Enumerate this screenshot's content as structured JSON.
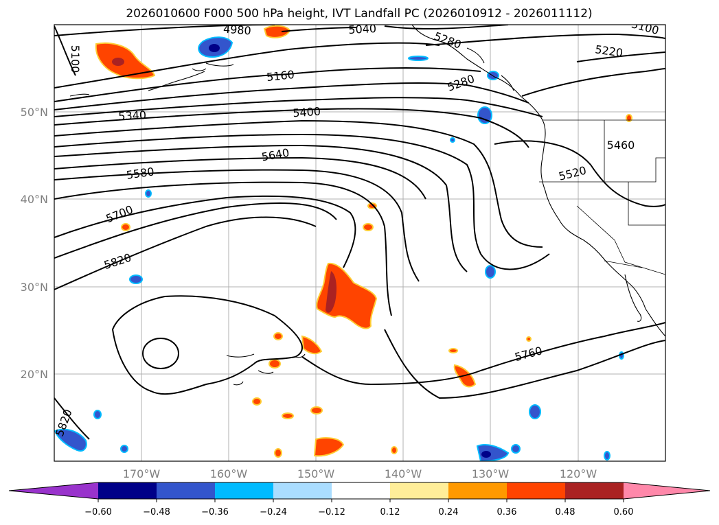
{
  "title": "2026010600 F000 500 hPa height, IVT Landfall PC (2026010912 - 2026011112)",
  "map": {
    "lat_labels": [
      "50°N",
      "40°N",
      "30°N",
      "20°N"
    ],
    "lon_labels": [
      "170°W",
      "160°W",
      "150°W",
      "140°W",
      "130°W",
      "120°W"
    ],
    "gridlines": true
  },
  "contour_labels": [
    "4980",
    "5040",
    "5100",
    "5160",
    "5220",
    "5280",
    "5340",
    "5400",
    "5460",
    "5520",
    "5580",
    "5640",
    "5700",
    "5760",
    "5820",
    "5820",
    "5100",
    "5280"
  ],
  "colorbar": {
    "ticks": [
      "−0.60",
      "−0.48",
      "−0.36",
      "−0.24",
      "−0.12",
      "0.12",
      "0.24",
      "0.36",
      "0.48",
      "0.60"
    ],
    "colors": [
      "#9933cc",
      "#000088",
      "#3355cc",
      "#00bbff",
      "#aaddff",
      "#ffffff",
      "#ffee99",
      "#ff9900",
      "#ff4400",
      "#aa2222",
      "#ff88aa"
    ]
  }
}
